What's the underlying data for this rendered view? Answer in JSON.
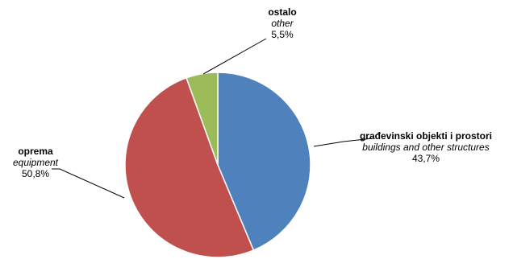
{
  "chart_data": {
    "type": "pie",
    "start_angle_deg": 0,
    "direction": "clockwise",
    "slices": [
      {
        "label": "građevinski objekti i prostori",
        "sublabel": "buildings and other structures",
        "value": 43.7,
        "value_label": "43,7%",
        "color": "#4f81bd"
      },
      {
        "label": "oprema",
        "sublabel": "equipment",
        "value": 50.8,
        "value_label": "50,8%",
        "color": "#c0504d"
      },
      {
        "label": "ostalo",
        "sublabel": "other",
        "value": 5.5,
        "value_label": "5,5%",
        "color": "#9bbb59"
      }
    ]
  }
}
